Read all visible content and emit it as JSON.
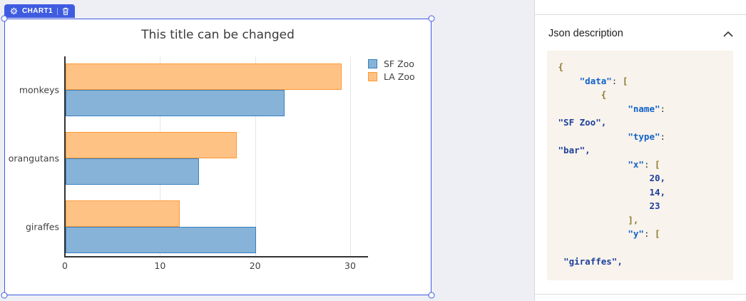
{
  "colors": {
    "accent": "#3f5ce1",
    "canvas_bg": "#edeff5",
    "card_bg": "#ffffff",
    "code_bg": "#f8f3ec",
    "code_key": "#0f62c9",
    "code_value": "#1d3f9e",
    "code_bracket": "#8f7a2e",
    "panel_divider": "#dcdcdc"
  },
  "canvas": {
    "badge": {
      "label": "CHART1"
    }
  },
  "chart_data": {
    "type": "bar",
    "orientation": "horizontal",
    "title": "This title can be changed",
    "categories": [
      "giraffes",
      "orangutans",
      "monkeys"
    ],
    "series": [
      {
        "name": "SF Zoo",
        "values": [
          20,
          14,
          23
        ],
        "fill": "#87b3d9",
        "border": "#3780bf"
      },
      {
        "name": "LA Zoo",
        "values": [
          12,
          18,
          29
        ],
        "fill": "#ffc285",
        "border": "#ff9933"
      }
    ],
    "x_ticks": [
      0,
      10,
      20,
      30
    ],
    "xlim": [
      0,
      30
    ],
    "grid": "vertical",
    "legend_position": "top-right"
  },
  "panel": {
    "header": "Json description",
    "collapse_icon": "chevron-up",
    "code_lines": [
      [
        {
          "t": " ",
          "c": "p"
        },
        {
          "t": "{",
          "c": "b"
        }
      ],
      [
        {
          "t": "     ",
          "c": "p"
        },
        {
          "t": "\"data\"",
          "c": "k"
        },
        {
          "t": ": ",
          "c": "p"
        },
        {
          "t": "[",
          "c": "b"
        }
      ],
      [
        {
          "t": "         ",
          "c": "p"
        },
        {
          "t": "{",
          "c": "b"
        }
      ],
      [
        {
          "t": "              ",
          "c": "p"
        },
        {
          "t": "\"name\"",
          "c": "k"
        },
        {
          "t": ":",
          "c": "p"
        }
      ],
      [
        {
          "t": " ",
          "c": "p"
        },
        {
          "t": "\"SF Zoo\",",
          "c": "v"
        }
      ],
      [
        {
          "t": "              ",
          "c": "p"
        },
        {
          "t": "\"type\"",
          "c": "k"
        },
        {
          "t": ":",
          "c": "p"
        }
      ],
      [
        {
          "t": " ",
          "c": "p"
        },
        {
          "t": "\"bar\",",
          "c": "v"
        }
      ],
      [
        {
          "t": "              ",
          "c": "p"
        },
        {
          "t": "\"x\"",
          "c": "k"
        },
        {
          "t": ": ",
          "c": "p"
        },
        {
          "t": "[",
          "c": "b"
        }
      ],
      [
        {
          "t": "                  ",
          "c": "p"
        },
        {
          "t": "20,",
          "c": "v"
        }
      ],
      [
        {
          "t": "                  ",
          "c": "p"
        },
        {
          "t": "14,",
          "c": "v"
        }
      ],
      [
        {
          "t": "                  ",
          "c": "p"
        },
        {
          "t": "23",
          "c": "v"
        }
      ],
      [
        {
          "t": "              ",
          "c": "p"
        },
        {
          "t": "],",
          "c": "b"
        }
      ],
      [
        {
          "t": "              ",
          "c": "p"
        },
        {
          "t": "\"y\"",
          "c": "k"
        },
        {
          "t": ": ",
          "c": "p"
        },
        {
          "t": "[",
          "c": "b"
        }
      ],
      [],
      [
        {
          "t": "  ",
          "c": "p"
        },
        {
          "t": "\"giraffes\",",
          "c": "v"
        }
      ]
    ]
  }
}
